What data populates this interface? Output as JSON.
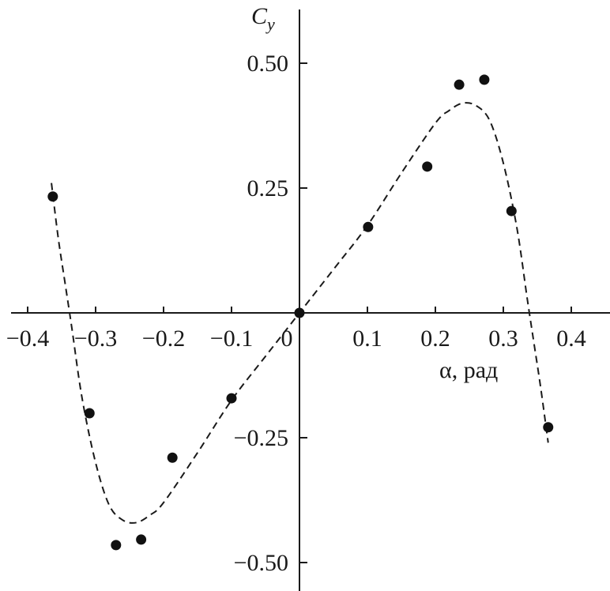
{
  "chart_data": {
    "type": "scatter",
    "title": "",
    "xlabel": "α, рад",
    "ylabel_main": "C",
    "ylabel_sub": "y",
    "xlim": [
      -0.42,
      0.45
    ],
    "ylim": [
      -0.55,
      0.6
    ],
    "grid": false,
    "x_ticks": [
      {
        "value": -0.4,
        "label": "−0.4"
      },
      {
        "value": -0.3,
        "label": "−0.3"
      },
      {
        "value": -0.2,
        "label": "−0.2"
      },
      {
        "value": -0.1,
        "label": "−0.1"
      },
      {
        "value": 0,
        "label": "0"
      },
      {
        "value": 0.1,
        "label": "0.1"
      },
      {
        "value": 0.2,
        "label": "0.2"
      },
      {
        "value": 0.3,
        "label": "0.3"
      },
      {
        "value": 0.4,
        "label": "0.4"
      }
    ],
    "y_ticks": [
      {
        "value": 0.5,
        "label": "0.50"
      },
      {
        "value": 0.25,
        "label": "0.25"
      },
      {
        "value": -0.25,
        "label": "−0.25"
      },
      {
        "value": -0.5,
        "label": "−0.50"
      }
    ],
    "points": [
      {
        "x": -0.363,
        "y": 0.233
      },
      {
        "x": -0.309,
        "y": -0.201
      },
      {
        "x": -0.27,
        "y": -0.465
      },
      {
        "x": -0.233,
        "y": -0.454
      },
      {
        "x": -0.187,
        "y": -0.29
      },
      {
        "x": -0.1,
        "y": -0.171
      },
      {
        "x": 0.0,
        "y": 0.0
      },
      {
        "x": 0.101,
        "y": 0.172
      },
      {
        "x": 0.188,
        "y": 0.293
      },
      {
        "x": 0.235,
        "y": 0.457
      },
      {
        "x": 0.272,
        "y": 0.467
      },
      {
        "x": 0.312,
        "y": 0.204
      },
      {
        "x": 0.366,
        "y": -0.229
      }
    ],
    "curve": {
      "style": "dashed",
      "x": [
        -0.365,
        -0.355,
        -0.345,
        -0.335,
        -0.32,
        -0.3,
        -0.28,
        -0.26,
        -0.24,
        -0.22,
        -0.2,
        -0.15,
        -0.1,
        -0.05,
        0,
        0.05,
        0.1,
        0.15,
        0.2,
        0.22,
        0.24,
        0.26,
        0.28,
        0.3,
        0.32,
        0.335,
        0.345,
        0.355,
        0.366
      ],
      "y": [
        0.26,
        0.15,
        0.06,
        -0.03,
        -0.17,
        -0.3,
        -0.385,
        -0.415,
        -0.42,
        -0.405,
        -0.38,
        -0.28,
        -0.175,
        -0.087,
        0,
        0.087,
        0.175,
        0.28,
        0.38,
        0.405,
        0.42,
        0.415,
        0.385,
        0.3,
        0.17,
        0.03,
        -0.06,
        -0.15,
        -0.26
      ]
    }
  }
}
